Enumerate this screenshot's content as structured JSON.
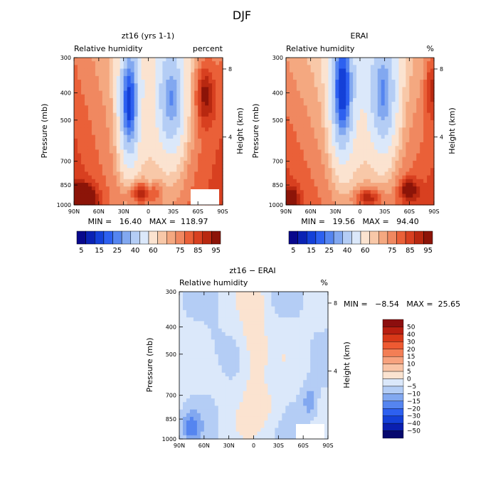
{
  "figure_title": "DJF",
  "chart_data": [
    {
      "type": "heatmap",
      "title": "zt16 (yrs 1-1)",
      "subtitle_left": "Relative humidity",
      "subtitle_right": "percent",
      "xlabel": "",
      "ylabel": "Pressure (mb)",
      "ylabel_right": "Height (km)",
      "x_ticks": [
        "90N",
        "60N",
        "30N",
        "0",
        "30S",
        "60S",
        "90S"
      ],
      "y_ticks": [
        "300",
        "400",
        "500",
        "700",
        "850",
        "1000"
      ],
      "y_ticks_right": [
        "8",
        "4"
      ],
      "stats": "MIN =   16.40   MAX =  118.97",
      "colorbar_ticks": [
        "5",
        "15",
        "25",
        "40",
        "60",
        "75",
        "85",
        "95"
      ],
      "levels": [
        5,
        10,
        15,
        20,
        25,
        30,
        40,
        50,
        60,
        65,
        70,
        75,
        80,
        85,
        90,
        95
      ]
    },
    {
      "type": "heatmap",
      "title": "ERAI",
      "subtitle_left": "Relative humidity",
      "subtitle_right": "%",
      "xlabel": "",
      "ylabel": "Pressure (mb)",
      "ylabel_right": "Height (km)",
      "x_ticks": [
        "90N",
        "60N",
        "30N",
        "0",
        "30S",
        "60S",
        "90S"
      ],
      "y_ticks": [
        "300",
        "400",
        "500",
        "700",
        "850",
        "1000"
      ],
      "y_ticks_right": [
        "8",
        "4"
      ],
      "stats": "MIN =   19.56   MAX =   94.40",
      "colorbar_ticks": [
        "5",
        "15",
        "25",
        "40",
        "60",
        "75",
        "85",
        "95"
      ],
      "levels": [
        5,
        10,
        15,
        20,
        25,
        30,
        40,
        50,
        60,
        65,
        70,
        75,
        80,
        85,
        90,
        95
      ]
    },
    {
      "type": "heatmap",
      "title": "zt16 − ERAI",
      "subtitle_left": "Relative humidity",
      "subtitle_right": "%",
      "xlabel": "",
      "ylabel": "Pressure (mb)",
      "ylabel_right": "Height (km)",
      "x_ticks": [
        "90N",
        "60N",
        "30N",
        "0",
        "30S",
        "60S",
        "90S"
      ],
      "y_ticks": [
        "300",
        "400",
        "500",
        "700",
        "850",
        "1000"
      ],
      "y_ticks_right": [
        "8",
        "4"
      ],
      "stats": "MIN =   −8.54   MAX =  25.65",
      "colorbar_ticks": [
        "50",
        "40",
        "30",
        "20",
        "15",
        "10",
        "5",
        "0",
        "−5",
        "−10",
        "−15",
        "−20",
        "−30",
        "−40",
        "−50"
      ],
      "levels": [
        -50,
        -40,
        -30,
        -20,
        -15,
        -10,
        -5,
        0,
        5,
        10,
        15,
        20,
        30,
        40,
        50
      ]
    }
  ],
  "colors": {
    "rh_scale": [
      "#08088c",
      "#0a22b4",
      "#1440d8",
      "#2d60f0",
      "#5585f0",
      "#82a8f0",
      "#b4cdf5",
      "#dbe8fa",
      "#fbe3d0",
      "#f8c8a8",
      "#f4a880",
      "#f08860",
      "#ea6038",
      "#d84020",
      "#b82810",
      "#8c1408"
    ],
    "diff_scale": [
      "#8c0e0e",
      "#b81e10",
      "#d83818",
      "#ee5a32",
      "#f37e55",
      "#f7a27e",
      "#f9c4a6",
      "#fbe3d0",
      "#dbe8fa",
      "#b4cdf5",
      "#82a8f0",
      "#5585f0",
      "#2d60f0",
      "#1440d8",
      "#0a1fb0",
      "#06086e"
    ]
  }
}
